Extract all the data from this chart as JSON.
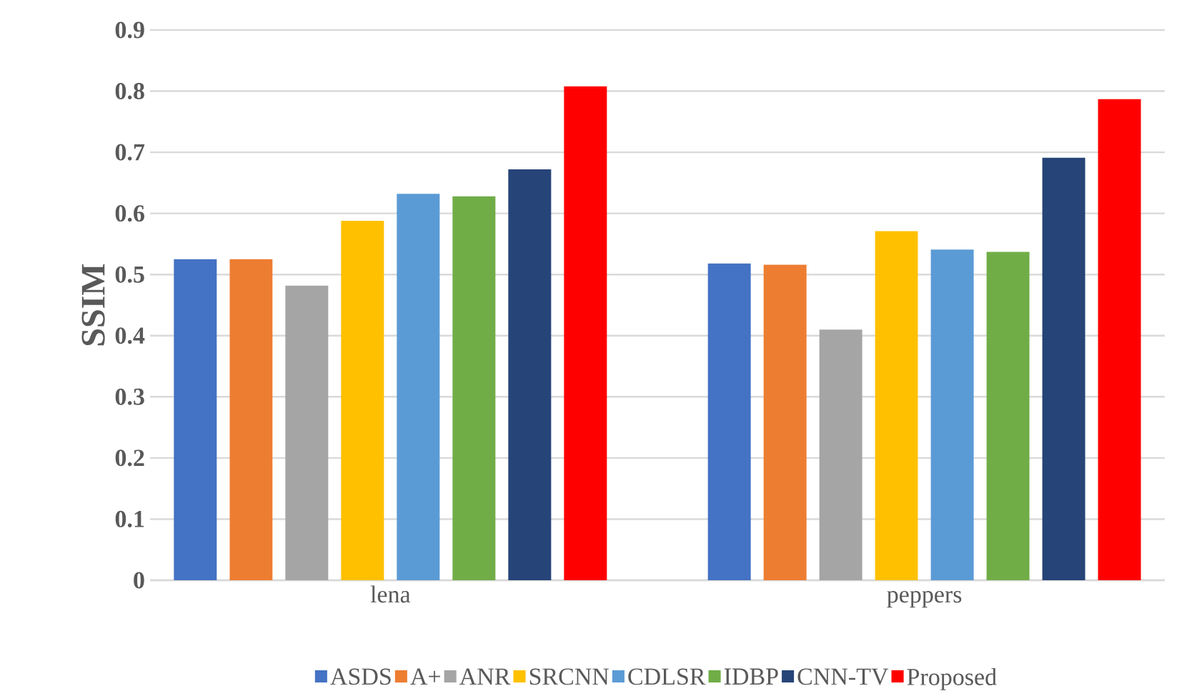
{
  "chart_data": {
    "type": "bar",
    "ylabel": "SSIM",
    "categories": [
      "lena",
      "peppers"
    ],
    "series": [
      {
        "name": "ASDS",
        "color": "#4472c4",
        "values": [
          0.525,
          0.518
        ]
      },
      {
        "name": "A+",
        "color": "#ed7d31",
        "values": [
          0.525,
          0.516
        ]
      },
      {
        "name": "ANR",
        "color": "#a5a5a5",
        "values": [
          0.482,
          0.41
        ]
      },
      {
        "name": "SRCNN",
        "color": "#ffc000",
        "values": [
          0.588,
          0.571
        ]
      },
      {
        "name": "CDLSR",
        "color": "#5b9bd5",
        "values": [
          0.632,
          0.541
        ]
      },
      {
        "name": "IDBP",
        "color": "#70ad47",
        "values": [
          0.628,
          0.537
        ]
      },
      {
        "name": "CNN-TV",
        "color": "#264478",
        "values": [
          0.672,
          0.691
        ]
      },
      {
        "name": "Proposed",
        "color": "#ff0000",
        "values": [
          0.808,
          0.787
        ]
      }
    ],
    "ylim": [
      0,
      0.9
    ],
    "yticks": [
      0,
      0.1,
      0.2,
      0.3,
      0.4,
      0.5,
      0.6,
      0.7,
      0.8,
      0.9
    ],
    "grid": "y",
    "legend": "bottom"
  }
}
